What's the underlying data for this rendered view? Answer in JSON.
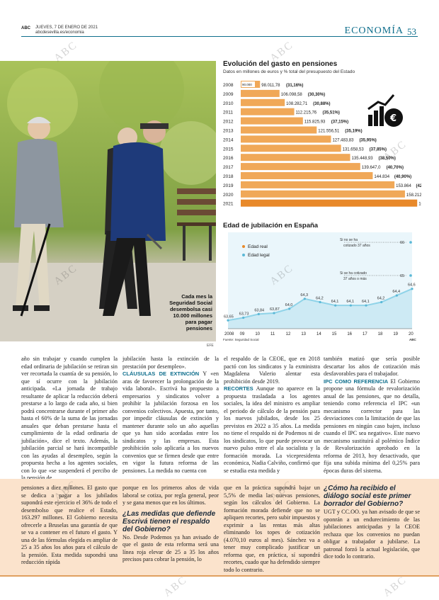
{
  "header": {
    "brand": "ABC",
    "date_line": "JUEVES, 7 DE ENERO DE 2021",
    "url_line": "abcdesevilla.es/economia",
    "section": "ECONOMÍA",
    "page_number": "53"
  },
  "photo": {
    "caption": "Cada mes la Seguridad Social desembolsa casi 10.000 millones para pagar pensiones",
    "credit": "EFE"
  },
  "colors": {
    "accent": "#0e6e8c",
    "bar": "#f0a858",
    "bar_last": "#e8892a",
    "band": "#fbe3cc",
    "line": "#8fd3e8"
  },
  "chart_data": [
    {
      "type": "bar",
      "title": "Evolución del gasto en pensiones",
      "subtitle": "Datos en millones de euros y % total del presupuesto del Estado",
      "categories": [
        "2008",
        "2009",
        "2010",
        "2011",
        "2012",
        "2013",
        "2014",
        "2015",
        "2016",
        "2017",
        "2018",
        "2019",
        "2020",
        "2021"
      ],
      "values": [
        98011.78,
        106098.58,
        108282.71,
        112215.76,
        115825.93,
        121556.51,
        127483.83,
        131658.53,
        135448.93,
        139647.0,
        144834,
        153864,
        158212,
        163297
      ],
      "value_labels": [
        "98.011,78",
        "106.098,58",
        "108.282,71",
        "112.215,76",
        "115.825,93",
        "121.556,51",
        "127.483,83",
        "131.658,53",
        "135.448,93",
        "139.647,0",
        "144.834",
        "153.864",
        "158.212",
        "163.297"
      ],
      "percent_labels": [
        "(31,16%)",
        "(30,30%)",
        "(30,88%)",
        "(35,51%)",
        "(37,15%)",
        "(35,19%)",
        "(35,95%)",
        "(37,85%)",
        "(38,50%)",
        "(40,70%)",
        "(40,90%)",
        "(42,1%)",
        "(41,7%)",
        "(35,8%)"
      ],
      "axis_start_label": "90.000",
      "icon": "pension-money-icon"
    },
    {
      "type": "line",
      "title": "Edad de jubilación en España",
      "x_labels": [
        "2008",
        "09",
        "10",
        "11",
        "12",
        "13",
        "14",
        "15",
        "16",
        "17",
        "18",
        "19",
        "20"
      ],
      "series": [
        {
          "name": "Edad real",
          "values": [
            63.65,
            63.73,
            63.84,
            63.87,
            64.0,
            64.3,
            64.2,
            64.1,
            64.1,
            64.1,
            64.2,
            64.4,
            64.6
          ],
          "labels": [
            "63,65",
            "63,73",
            "63,84",
            "63,87",
            "64,0",
            "64,3",
            "64,2",
            "64,1",
            "64,1",
            "64,1",
            "64,2",
            "64,4",
            "64,6"
          ]
        },
        {
          "name": "Edad legal"
        }
      ],
      "legal_notes": [
        {
          "text": "Si no se ha cotizado 37 años",
          "value": "66"
        },
        {
          "text": "Si se ha cotizado 37 años o más",
          "value": "65"
        }
      ],
      "ylim": [
        63.4,
        66.3
      ],
      "source": "Fuente: Seguridad Social",
      "source_brand": "ABC"
    }
  ],
  "article": {
    "col1": "año sin trabajar y cuando cumplen la edad ordinaria de jubilación se retiran sin ver recortada la cuantía de su pensión, lo que sí ocurre con la jubilación anticipada. «La jornada de trabajo resultante de aplicar la reducción deberá prestarse a lo largo de cada año, si bien podrá concentrarse durante el primer año hasta el 60% de la suma de las jornadas anuales que deban prestarse hasta el cumplimiento de la edad ordinaria de jubilación», dice el texto. Además, la jubilación parcial se hará incompatible con las ayudas al desempleo, según la propuesta hecha a los agentes sociales, con lo que «se suspenderá el percibo de la pensión de",
    "col2a": "jubilación hasta la extinción de la prestación por desempleo».",
    "col2_kicker": "CLÁUSULAS DE EXTINCIÓN",
    "col2b": " Y «en aras de favorecer la prolongación de la vida laboral». Escrivá ha propuesto a empresarios y sindicatos volver a prohibir la jubilación forzosa en los convenios colectivos. Apuesta, por tanto, por impedir cláusulas de extinción y mantener durante solo un año aquellas que ya han sido acordadas entre los sindicatos y las empresas. Esta prohibición solo aplicaría a los nuevos convenios que se firmen desde que entre en vigor la futura reforma de las pensiones. La medida no cuenta con",
    "col3a": "el respaldo de la CEOE, que en 2018 pactó con los sindicatos y la exministra Magdalena Valerio alentar esta prohibición desde 2019.",
    "col3_kicker": "RECORTES",
    "col3b": " Aunque no aparece en la propuesta trasladada a los agentes sociales, la idea del ministro es ampliar el periodo de cálculo de la pensión para los nuevos jubilados, desde los 25 previstos en 2022 a 35 años. La medida no tiene el respaldo ni de Podemos ni de los sindicatos, lo que puede provocar un nuevo pulso entre el ala socialista y la formación morada. La vicepresidenta económica, Nadia Calviño, confirmó que se estudia esta medida y",
    "col4a": "también matizó que sería posible descartar los años de cotización más desfavorables para el trabajador.",
    "col4_kicker": "IPC COMO REFERENCIA",
    "col4b": " El Gobierno propone una fórmula de revalorización anual de las pensiones, que no detalla, teniendo como referencia el IPC «un mecanismo corrector para las desviaciones con la limitación de que las pensiones en ningún caso bajen, incluso cuando el IPC sea negativo». Este nuevo mecanismo sustituirá al polémico Índice de Revalorización aprobado en la reforma de 2013, hoy desactivado, que fija una subida mínima del 0,25% para épocas duras del sistema."
  },
  "band": {
    "col1": "pensiones a diez millones. El gasto que se dedica a pagar a los jubilados supondrá este ejercicio el 36% de todo el desembolso que realice el Estado, 163.297 millones. El Gobierno necesita ofrecerle a Bruselas una garantía de que se va a contener en el futuro el gasto. Y una de las fórmulas elegida es ampliar de 25 a 35 años los años para el cálculo de la pensión. Esta medida supondrá una reducción rápida",
    "col2a": "porque en los primeros años de vida laboral se cotiza, por regla general, peor y se gana menos que en los últimos.",
    "col2_q": "¿Las medidas que defiende Escrivá tienen el respaldo del Gobierno?",
    "col2b": "No. Desde Podemos ya han avisado de que el gasto de esta reforma será una línea roja elevar de 25 a 35 los años precisos para cobrar la pensión, lo",
    "col3": "que en la práctica supondrá bajar un 5,5% de media las nuevas pensiones, según los cálculos del Gobierno. La formación morada defiende que no se apliquen recortes, pero subir impuestos y exprimir a las rentas más altas eliminando los topes de cotización (4.070,10 euros al mes). Sánchez va a tener muy complicado justificar un reforma que, en práctica, sí supondrá recortes, cuado que ha defendido siempre todo lo contrario.",
    "col4_q": "¿Cómo ha recibido el diálogo social este primer borrador del Gobierno?",
    "col4": "UGT y CC.OO. ya han avisado de que se oponrán a un endurecimiento de las jubilaciones anticipadas y la CEOE rechaza que los convenios no puedan obligar a trabajador a jubilarse. La patronal forzó la actual legislación, que dice todo lo contrario."
  },
  "watermark": "ABC"
}
